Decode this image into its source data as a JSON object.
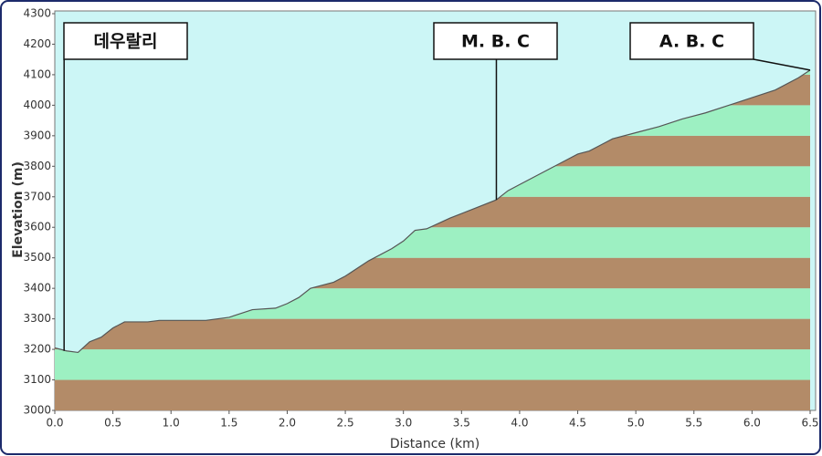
{
  "chart_data": {
    "type": "area",
    "x_label": "Distance  (km)",
    "y_label": "Elevation (m)",
    "x": [
      0,
      0.1,
      0.2,
      0.3,
      0.4,
      0.5,
      0.6,
      0.8,
      0.9,
      1.0,
      1.3,
      1.5,
      1.7,
      1.9,
      2.0,
      2.1,
      2.2,
      2.4,
      2.5,
      2.7,
      2.9,
      3.0,
      3.1,
      3.2,
      3.4,
      3.6,
      3.8,
      3.9,
      4.0,
      4.2,
      4.4,
      4.5,
      4.6,
      4.7,
      4.8,
      5.0,
      5.2,
      5.4,
      5.6,
      5.8,
      6.0,
      6.2,
      6.4,
      6.5
    ],
    "y": [
      3205,
      3195,
      3190,
      3225,
      3240,
      3270,
      3290,
      3290,
      3295,
      3295,
      3295,
      3305,
      3330,
      3335,
      3350,
      3370,
      3400,
      3420,
      3440,
      3490,
      3530,
      3555,
      3590,
      3595,
      3630,
      3660,
      3690,
      3720,
      3740,
      3780,
      3820,
      3840,
      3850,
      3870,
      3890,
      3910,
      3930,
      3955,
      3975,
      4000,
      4025,
      4050,
      4090,
      4115
    ],
    "xlim": [
      0,
      6.5
    ],
    "xticks": [
      {
        "value": 0,
        "label": "0.0"
      },
      0.5,
      {
        "value": 1,
        "label": "1.0"
      },
      1.5,
      {
        "value": 2,
        "label": "2.0"
      },
      2.5,
      {
        "value": 3,
        "label": "3.0"
      },
      3.5,
      {
        "value": 4,
        "label": "4.0"
      },
      4.5,
      {
        "value": 5,
        "label": "5.0"
      },
      5.5,
      {
        "value": 6,
        "label": "6.0"
      },
      6.5
    ],
    "ylim": [
      3000,
      4300
    ],
    "yticks": [
      3000,
      3100,
      3200,
      3300,
      3400,
      3500,
      3600,
      3700,
      3800,
      3900,
      4000,
      4100,
      4200,
      4300
    ],
    "colors": {
      "sky": "#ccf6f6",
      "band_a": "#b38b68",
      "band_b": "#9df0c2"
    },
    "annotations": [
      {
        "text": "데우랄리",
        "x": 0.08,
        "y": 3195
      },
      {
        "text": "M. B. C",
        "x": 3.8,
        "y": 3690
      },
      {
        "text": "A. B. C",
        "x": 6.5,
        "y": 4115
      }
    ]
  }
}
